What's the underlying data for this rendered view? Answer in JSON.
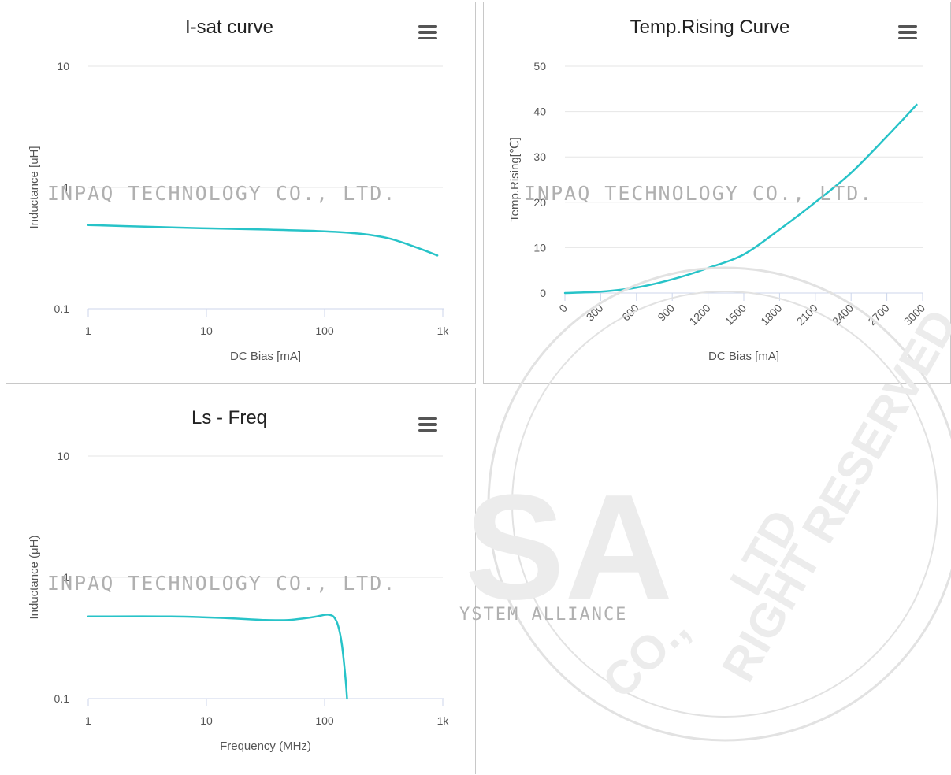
{
  "chart_data": [
    {
      "id": "isat",
      "type": "line",
      "title": "I-sat curve",
      "xlabel": "DC Bias [mA]",
      "ylabel": "Inductance [uH]",
      "xscale": "log",
      "yscale": "log",
      "xlim": [
        1,
        1000
      ],
      "ylim": [
        0.1,
        10
      ],
      "xticks": [
        {
          "value": 1,
          "label": "1"
        },
        {
          "value": 10,
          "label": "10"
        },
        {
          "value": 100,
          "label": "100"
        },
        {
          "value": 1000,
          "label": "1k"
        }
      ],
      "yticks": [
        {
          "value": 0.1,
          "label": "0.1"
        },
        {
          "value": 1,
          "label": "1"
        },
        {
          "value": 10,
          "label": "10"
        }
      ],
      "grid": "horizontal",
      "legend": "none",
      "color": "#27c3c8",
      "series": [
        {
          "x": [
            1,
            3,
            10,
            30,
            100,
            200,
            350,
            600,
            900
          ],
          "y": [
            0.49,
            0.475,
            0.46,
            0.45,
            0.435,
            0.415,
            0.38,
            0.32,
            0.275
          ]
        }
      ]
    },
    {
      "id": "temp",
      "type": "line",
      "title": "Temp.Rising Curve",
      "xlabel": "DC Bias [mA]",
      "ylabel": "Temp.Rising[℃]",
      "xlim": [
        0,
        3000
      ],
      "ylim": [
        0,
        50
      ],
      "xticks": [
        {
          "value": 0,
          "label": "0"
        },
        {
          "value": 300,
          "label": "300"
        },
        {
          "value": 600,
          "label": "600"
        },
        {
          "value": 900,
          "label": "900"
        },
        {
          "value": 1200,
          "label": "1200"
        },
        {
          "value": 1500,
          "label": "1500"
        },
        {
          "value": 1800,
          "label": "1800"
        },
        {
          "value": 2100,
          "label": "2100"
        },
        {
          "value": 2400,
          "label": "2400"
        },
        {
          "value": 2700,
          "label": "2700"
        },
        {
          "value": 3000,
          "label": "3000"
        }
      ],
      "yticks": [
        {
          "value": 0,
          "label": "0"
        },
        {
          "value": 10,
          "label": "10"
        },
        {
          "value": 20,
          "label": "20"
        },
        {
          "value": 30,
          "label": "30"
        },
        {
          "value": 40,
          "label": "40"
        },
        {
          "value": 50,
          "label": "50"
        }
      ],
      "grid": "horizontal",
      "legend": "none",
      "color": "#27c3c8",
      "series": [
        {
          "x": [
            0,
            300,
            600,
            900,
            1200,
            1500,
            1800,
            2100,
            2400,
            2700,
            2950
          ],
          "y": [
            0,
            0.3,
            1.2,
            3,
            5.5,
            8.5,
            14,
            20,
            26.5,
            34.5,
            41.5
          ]
        }
      ]
    },
    {
      "id": "freq",
      "type": "line",
      "title": "Ls - Freq",
      "xlabel": "Frequency (MHz)",
      "ylabel": "Inductance (μH)",
      "xscale": "log",
      "yscale": "log",
      "xlim": [
        1,
        1000
      ],
      "ylim": [
        0.1,
        10
      ],
      "xticks": [
        {
          "value": 1,
          "label": "1"
        },
        {
          "value": 10,
          "label": "10"
        },
        {
          "value": 100,
          "label": "100"
        },
        {
          "value": 1000,
          "label": "1k"
        }
      ],
      "yticks": [
        {
          "value": 0.1,
          "label": "0.1"
        },
        {
          "value": 1,
          "label": "1"
        },
        {
          "value": 10,
          "label": "10"
        }
      ],
      "grid": "horizontal",
      "legend": "none",
      "color": "#27c3c8",
      "series": [
        {
          "x": [
            1,
            5,
            15,
            30,
            50,
            80,
            100,
            110,
            120,
            130,
            140,
            150,
            155
          ],
          "y": [
            0.475,
            0.475,
            0.46,
            0.445,
            0.445,
            0.47,
            0.49,
            0.49,
            0.47,
            0.4,
            0.28,
            0.15,
            0.1
          ]
        }
      ]
    }
  ],
  "watermark": {
    "company": "INPAQ TECHNOLOGY CO., LTD.",
    "alliance": "YSTEM ALLIANCE",
    "seal_letters": "SA",
    "rights": "RIGHT RESERVED.",
    "seal_ltd": "LTD",
    "seal_co": "CO.,"
  }
}
